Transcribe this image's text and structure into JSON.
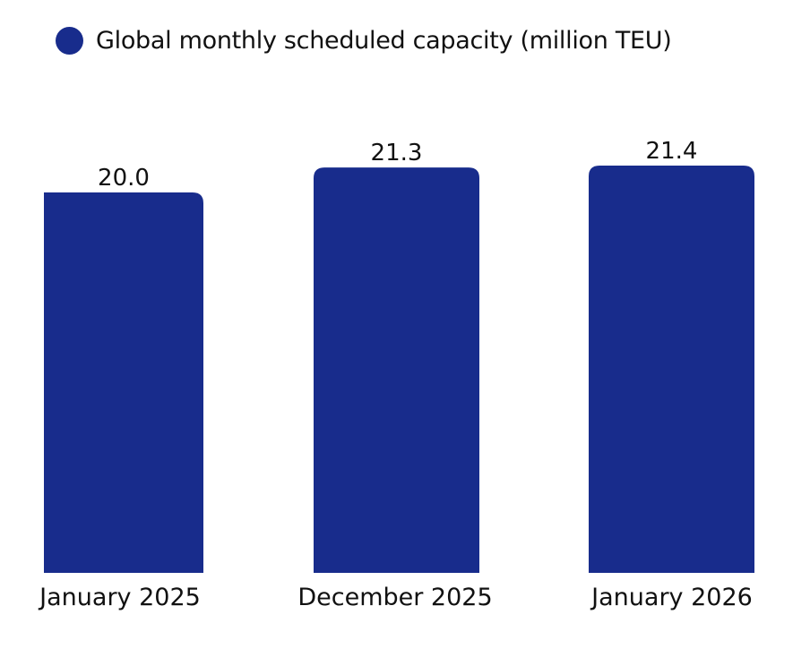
{
  "chart_data": {
    "type": "bar",
    "title": "",
    "legend": [
      {
        "label": "Global monthly scheduled capacity (million TEU)",
        "color": "#182C8C"
      }
    ],
    "legend_position": "top-left",
    "categories": [
      "January 2025",
      "December 2025",
      "January 2026"
    ],
    "series": [
      {
        "name": "Global monthly scheduled capacity (million TEU)",
        "values": [
          20.0,
          21.3,
          21.4
        ],
        "labels": [
          "20.0",
          "21.3",
          "21.4"
        ]
      }
    ],
    "xlabel": "",
    "ylabel": "",
    "ylim": [
      0,
      21.4
    ],
    "grid": false,
    "bar_color": "#182C8C"
  }
}
